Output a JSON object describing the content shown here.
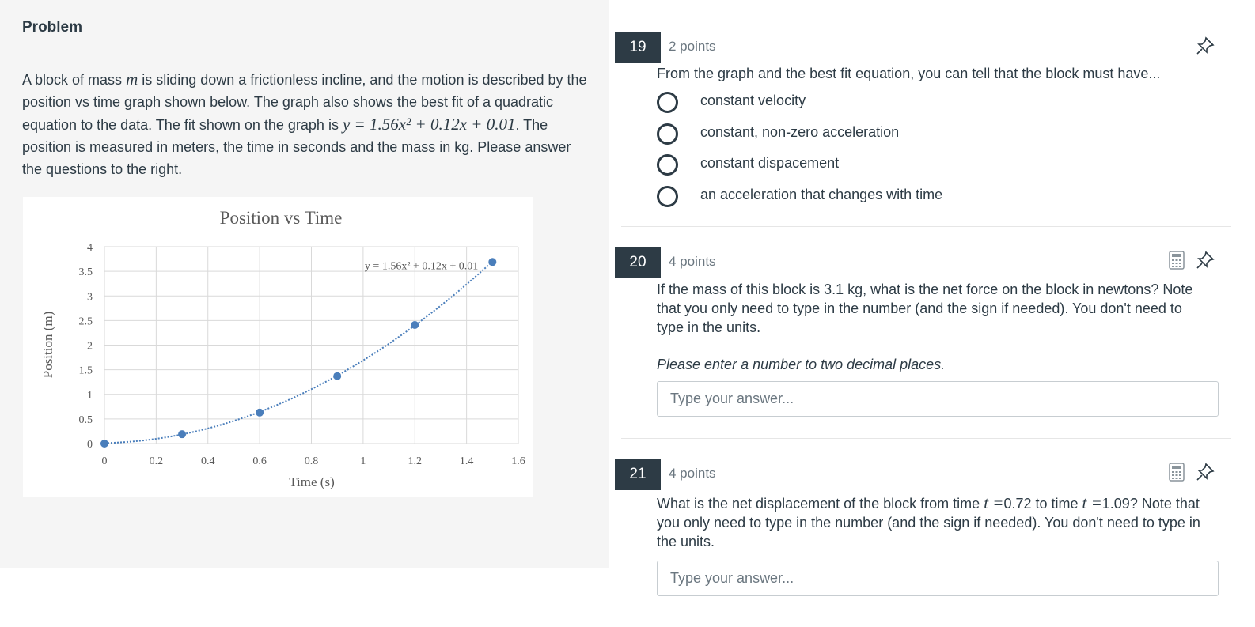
{
  "problem": {
    "title": "Problem",
    "text": [
      "A block of mass ",
      "m",
      " is sliding down a frictionless incline, and the motion is described by the position vs time graph shown below. The graph also shows the best fit of a quadratic equation to the data. The fit shown on the graph is ",
      "y = 1.56x² + 0.12x + 0.01",
      ". The position is measured in meters, the time in seconds and the mass in kg. Please answer the questions to the right."
    ]
  },
  "chart_data": {
    "type": "scatter",
    "title": "Position vs Time",
    "x_label": "Time (s)",
    "y_label": "Position (m)",
    "x": [
      0,
      0.3,
      0.6,
      0.9,
      1.2,
      1.5
    ],
    "y": [
      0,
      0.19,
      0.63,
      1.37,
      2.41,
      3.69
    ],
    "color": "#4a7ebb",
    "trendline": {
      "label": "y = 1.56x² + 0.12x + 0.01",
      "coefficients": [
        1.56,
        0.12,
        0.01
      ]
    },
    "xlim": [
      0,
      1.6
    ],
    "xticks": [
      0,
      0.2,
      0.4,
      0.6,
      0.8,
      1,
      1.2,
      1.4,
      1.6
    ],
    "ylim": [
      0,
      4
    ],
    "yticks": [
      0,
      0.5,
      1,
      1.5,
      2,
      2.5,
      3,
      3.5,
      4
    ],
    "grid": true
  },
  "questions": [
    {
      "number": "19",
      "points": "2 points",
      "prompt": [
        "From the graph and the best fit equation, you can tell that the block must have..."
      ],
      "options": [
        "constant velocity",
        "constant, non-zero acceleration",
        "constant dispacement",
        "an acceleration that changes with time"
      ]
    },
    {
      "number": "20",
      "points": "4 points",
      "prompt": [
        "If the mass of this block is 3.1 kg, what is the net force on the block in newtons? Note that you only need to type in the number (and the sign if needed). You don't need to type in the units."
      ],
      "note": "Please enter a number to two decimal places.",
      "placeholder": "Type your answer..."
    },
    {
      "number": "21",
      "points": "4 points",
      "prompt": [
        "What is the net displacement of the block from time ",
        "t =",
        "0.72 to time ",
        "t =",
        "1.09? Note that you only need to type in the number (and the sign if needed). You don't need to type in the units."
      ],
      "placeholder": "Type your answer..."
    }
  ]
}
